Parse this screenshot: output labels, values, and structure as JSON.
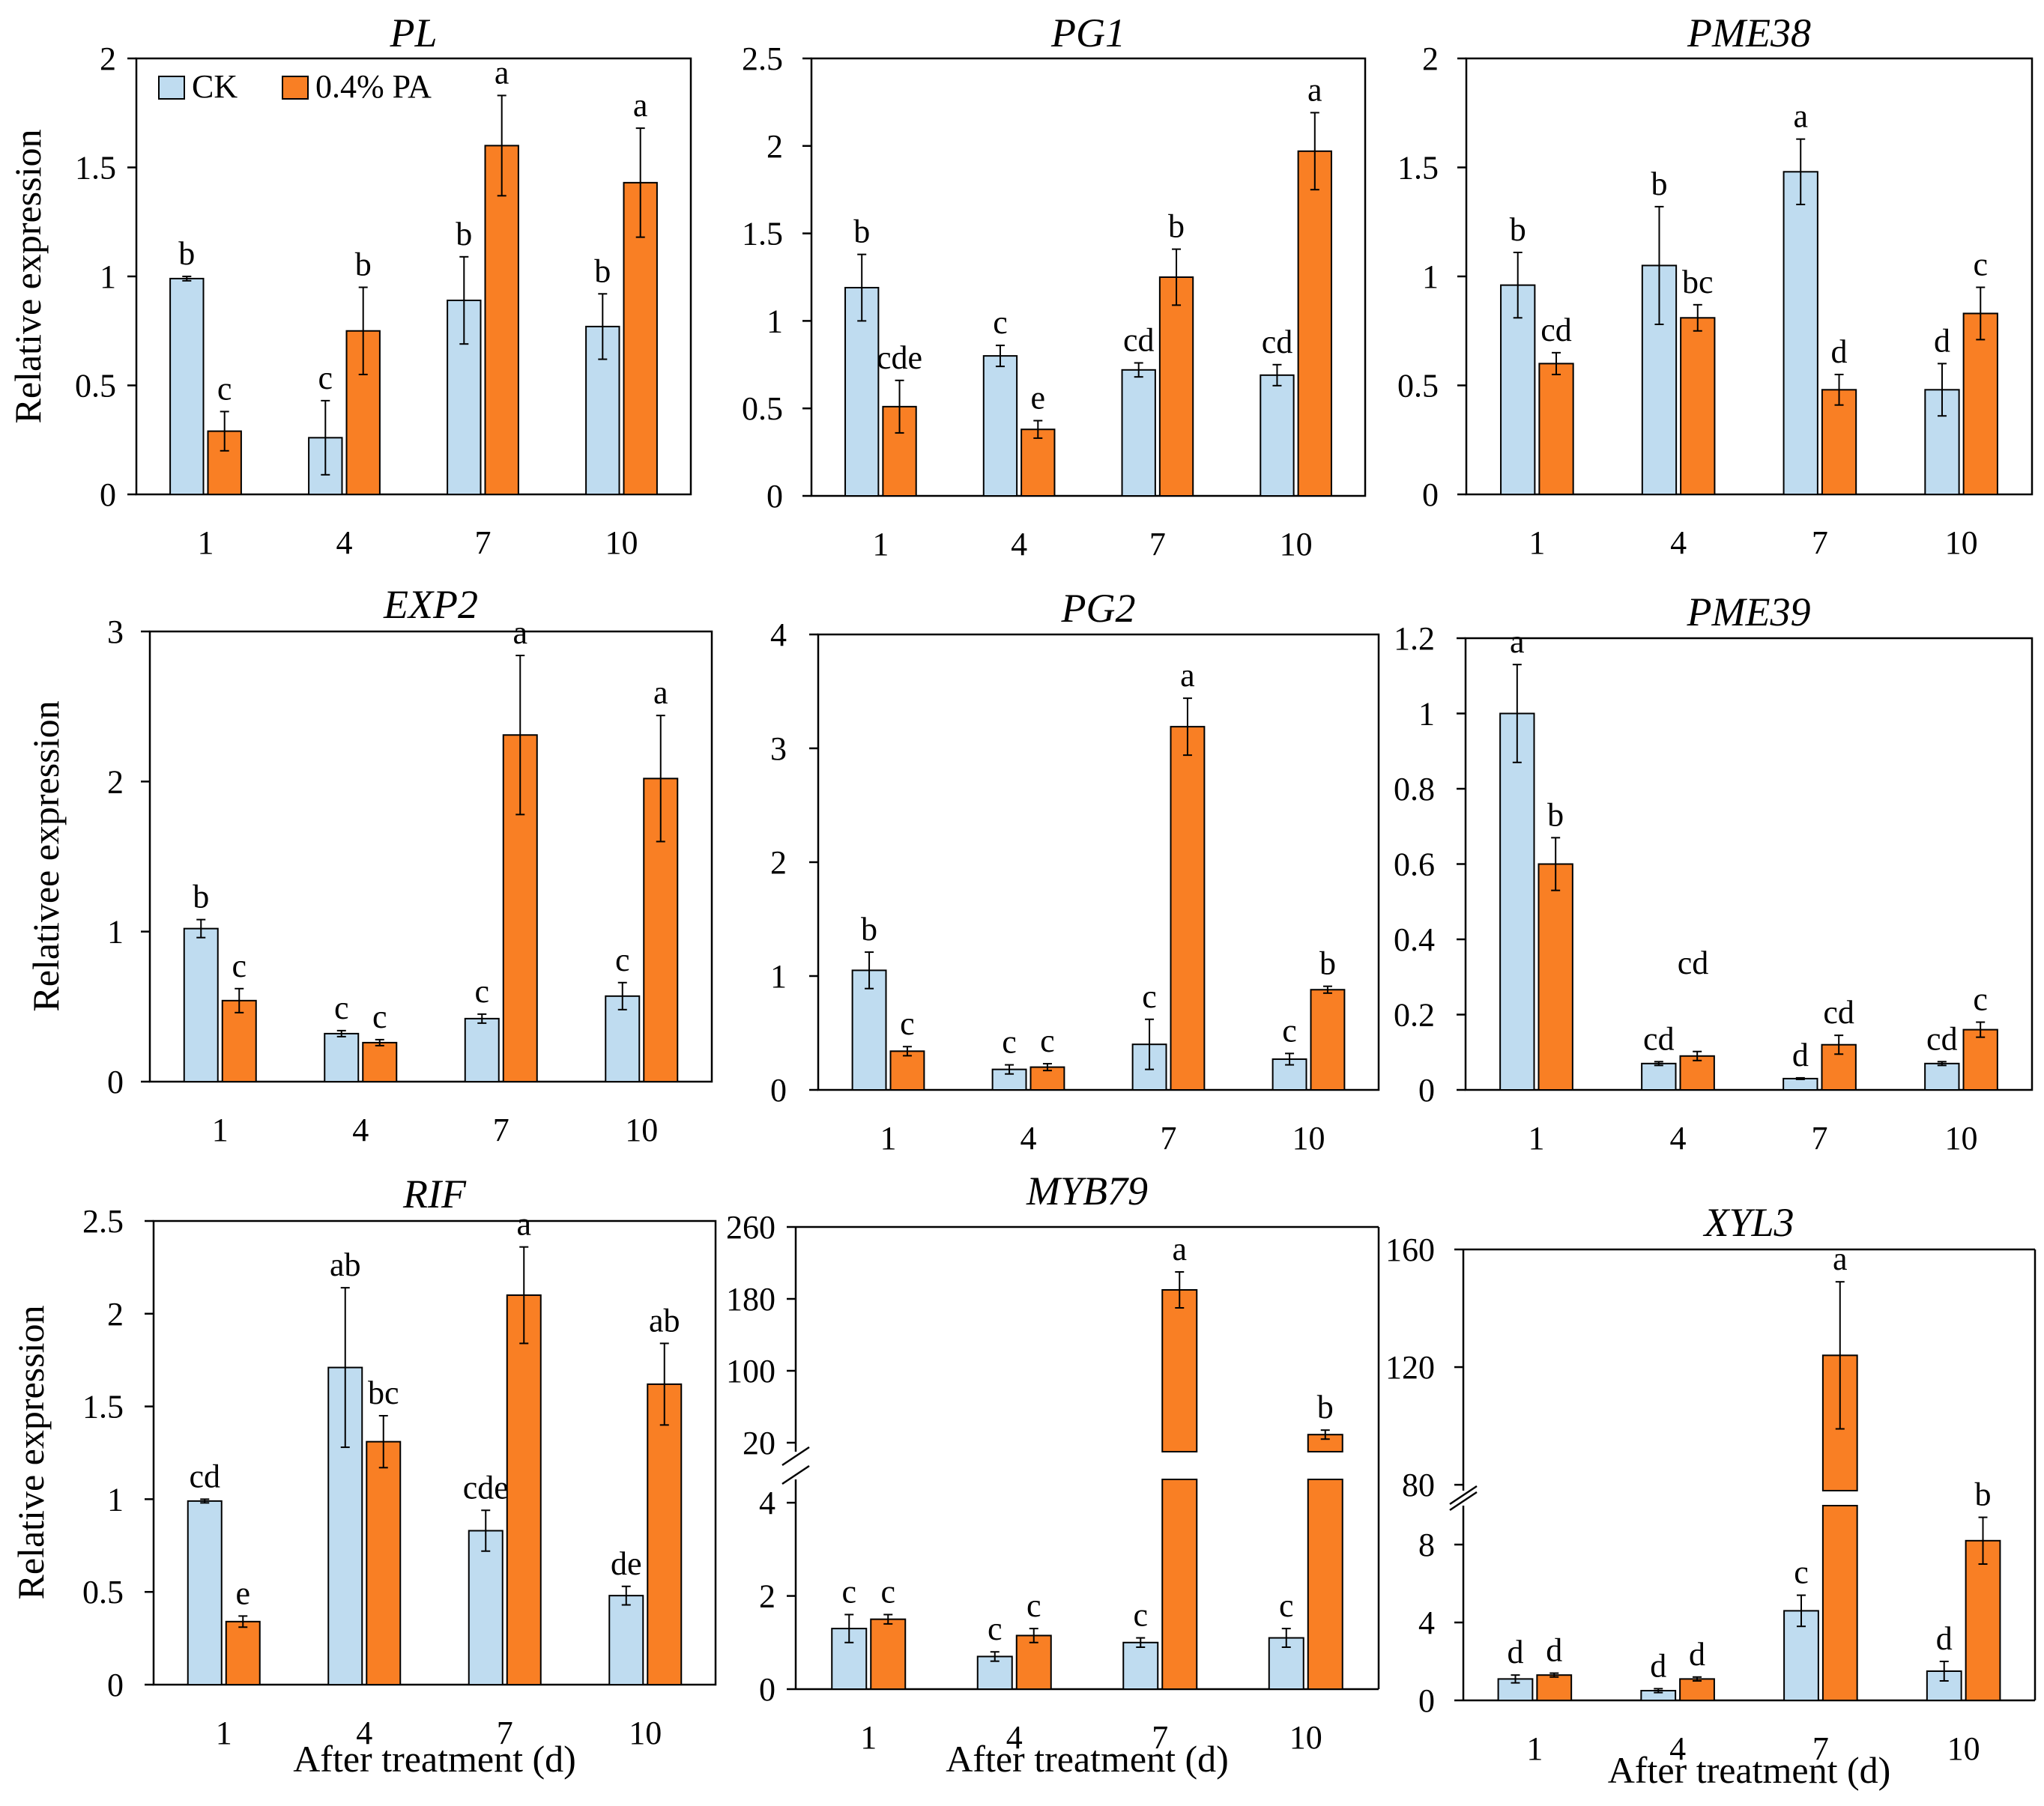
{
  "legend": {
    "items": [
      {
        "label": "CK",
        "color": "#bfdcf0"
      },
      {
        "label": "0.4% PA",
        "color": "#f97f24"
      }
    ]
  },
  "chart_data": [
    {
      "type": "bar",
      "title": "PL",
      "ylabel": "Relative expression",
      "xlabel": "",
      "categories": [
        "1",
        "4",
        "7",
        "10"
      ],
      "ylim": [
        0,
        2
      ],
      "yticks": [
        "0",
        "0.5",
        "1",
        "1.5",
        "2"
      ],
      "series": [
        {
          "name": "CK",
          "values": [
            0.99,
            0.26,
            0.89,
            0.77
          ],
          "errors": [
            0.01,
            0.17,
            0.2,
            0.15
          ],
          "labels": [
            "b",
            "c",
            "b",
            "b"
          ]
        },
        {
          "name": "0.4% PA",
          "values": [
            0.29,
            0.75,
            1.6,
            1.43
          ],
          "errors": [
            0.09,
            0.2,
            0.23,
            0.25
          ],
          "labels": [
            "c",
            "b",
            "a",
            "a"
          ]
        }
      ]
    },
    {
      "type": "bar",
      "title": "PG1",
      "ylabel": "",
      "xlabel": "",
      "categories": [
        "1",
        "4",
        "7",
        "10"
      ],
      "ylim": [
        0,
        2.5
      ],
      "yticks": [
        "0",
        "0.5",
        "1",
        "1.5",
        "2",
        "2.5"
      ],
      "series": [
        {
          "name": "CK",
          "values": [
            1.19,
            0.8,
            0.72,
            0.69
          ],
          "errors": [
            0.19,
            0.06,
            0.04,
            0.06
          ],
          "labels": [
            "b",
            "c",
            "cd",
            "cd"
          ]
        },
        {
          "name": "0.4% PA",
          "values": [
            0.51,
            0.38,
            1.25,
            1.97
          ],
          "errors": [
            0.15,
            0.05,
            0.16,
            0.22
          ],
          "labels": [
            "cde",
            "e",
            "b",
            "a"
          ]
        }
      ]
    },
    {
      "type": "bar",
      "title": "PME38",
      "ylabel": "",
      "xlabel": "",
      "categories": [
        "1",
        "4",
        "7",
        "10"
      ],
      "ylim": [
        0,
        2
      ],
      "yticks": [
        "0",
        "0.5",
        "1",
        "1.5",
        "2"
      ],
      "series": [
        {
          "name": "CK",
          "values": [
            0.96,
            1.05,
            1.48,
            0.48
          ],
          "errors": [
            0.15,
            0.27,
            0.15,
            0.12
          ],
          "labels": [
            "b",
            "b",
            "a",
            "d"
          ]
        },
        {
          "name": "0.4% PA",
          "values": [
            0.6,
            0.81,
            0.48,
            0.83
          ],
          "errors": [
            0.05,
            0.06,
            0.07,
            0.12
          ],
          "labels": [
            "cd",
            "bc",
            "d",
            "c"
          ]
        }
      ]
    },
    {
      "type": "bar",
      "title": "EXP2",
      "ylabel": "Relativee expression",
      "xlabel": "",
      "categories": [
        "1",
        "4",
        "7",
        "10"
      ],
      "ylim": [
        0,
        3
      ],
      "yticks": [
        "0",
        "1",
        "2",
        "3"
      ],
      "series": [
        {
          "name": "CK",
          "values": [
            1.02,
            0.32,
            0.42,
            0.57
          ],
          "errors": [
            0.06,
            0.02,
            0.03,
            0.09
          ],
          "labels": [
            "b",
            "c",
            "c",
            "c"
          ]
        },
        {
          "name": "0.4% PA",
          "values": [
            0.54,
            0.26,
            2.31,
            2.02
          ],
          "errors": [
            0.08,
            0.02,
            0.53,
            0.42
          ],
          "labels": [
            "c",
            "c",
            "a",
            "a"
          ]
        }
      ]
    },
    {
      "type": "bar",
      "title": "PG2",
      "ylabel": "",
      "xlabel": "",
      "categories": [
        "1",
        "4",
        "7",
        "10"
      ],
      "ylim": [
        0,
        4
      ],
      "yticks": [
        "0",
        "1",
        "2",
        "3",
        "4"
      ],
      "series": [
        {
          "name": "CK",
          "values": [
            1.05,
            0.18,
            0.4,
            0.27
          ],
          "errors": [
            0.16,
            0.04,
            0.22,
            0.05
          ],
          "labels": [
            "b",
            "c",
            "c",
            "c"
          ]
        },
        {
          "name": "0.4% PA",
          "values": [
            0.34,
            0.2,
            3.19,
            0.88
          ],
          "errors": [
            0.04,
            0.03,
            0.25,
            0.03
          ],
          "labels": [
            "c",
            "c",
            "a",
            "b"
          ]
        }
      ]
    },
    {
      "type": "bar",
      "title": "PME39",
      "ylabel": "",
      "xlabel": "",
      "categories": [
        "1",
        "4",
        "7",
        "10"
      ],
      "ylim": [
        0,
        1.2
      ],
      "yticks": [
        "0",
        "0.2",
        "0.4",
        "0.6",
        "0.8",
        "1",
        "1.2"
      ],
      "extra_label": "cd",
      "series": [
        {
          "name": "CK",
          "values": [
            1.0,
            0.07,
            0.03,
            0.07
          ],
          "errors": [
            0.13,
            0.005,
            0.002,
            0.005
          ],
          "labels": [
            "a",
            "cd",
            "d",
            "cd"
          ]
        },
        {
          "name": "0.4% PA",
          "values": [
            0.6,
            0.09,
            0.12,
            0.16
          ],
          "errors": [
            0.07,
            0.012,
            0.025,
            0.02
          ],
          "labels": [
            "b",
            "",
            "cd",
            "c"
          ]
        }
      ]
    },
    {
      "type": "bar",
      "title": "RIF",
      "ylabel": "Relative expression",
      "xlabel": "After treatment (d)",
      "categories": [
        "1",
        "4",
        "7",
        "10"
      ],
      "ylim": [
        0,
        2.5
      ],
      "yticks": [
        "0",
        "0.5",
        "1",
        "1.5",
        "2",
        "2.5"
      ],
      "series": [
        {
          "name": "CK",
          "values": [
            0.99,
            1.71,
            0.83,
            0.48
          ],
          "errors": [
            0.01,
            0.43,
            0.11,
            0.05
          ],
          "labels": [
            "cd",
            "ab",
            "cde",
            "de"
          ]
        },
        {
          "name": "0.4% PA",
          "values": [
            0.34,
            1.31,
            2.1,
            1.62
          ],
          "errors": [
            0.03,
            0.14,
            0.26,
            0.22
          ],
          "labels": [
            "e",
            "bc",
            "a",
            "ab"
          ]
        }
      ]
    },
    {
      "type": "bar",
      "title": "MYB79",
      "ylabel": "",
      "xlabel": "After treatment (d)",
      "categories": [
        "1",
        "4",
        "7",
        "10"
      ],
      "broken_axis": true,
      "lower_ylim": [
        0,
        4.5
      ],
      "lower_yticks": [
        "0",
        "2",
        "4"
      ],
      "upper_ylim": [
        10,
        260
      ],
      "upper_yticks": [
        "20",
        "100",
        "180",
        "260"
      ],
      "series": [
        {
          "name": "CK",
          "values": [
            1.3,
            0.7,
            1.0,
            1.1
          ],
          "errors": [
            0.3,
            0.1,
            0.1,
            0.2
          ],
          "labels": [
            "c",
            "c",
            "c",
            "c"
          ]
        },
        {
          "name": "0.4% PA",
          "values": [
            1.5,
            1.15,
            190,
            29
          ],
          "errors": [
            0.1,
            0.15,
            20,
            5
          ],
          "labels": [
            "c",
            "c",
            "a",
            "b"
          ]
        }
      ]
    },
    {
      "type": "bar",
      "title": "XYL3",
      "ylabel": "",
      "xlabel": "After treatment (d)",
      "categories": [
        "1",
        "4",
        "7",
        "10"
      ],
      "broken_axis": true,
      "lower_ylim": [
        0,
        10
      ],
      "lower_yticks": [
        "0",
        "4",
        "8"
      ],
      "upper_ylim": [
        78,
        160
      ],
      "upper_yticks": [
        "80",
        "120",
        "160"
      ],
      "series": [
        {
          "name": "CK",
          "values": [
            1.1,
            0.5,
            4.6,
            1.5
          ],
          "errors": [
            0.2,
            0.1,
            0.8,
            0.5
          ],
          "labels": [
            "d",
            "d",
            "c",
            "d"
          ]
        },
        {
          "name": "0.4% PA",
          "values": [
            1.3,
            1.1,
            124,
            8.2
          ],
          "errors": [
            0.1,
            0.1,
            25,
            1.2
          ],
          "labels": [
            "d",
            "d",
            "a",
            "b"
          ]
        }
      ]
    }
  ]
}
